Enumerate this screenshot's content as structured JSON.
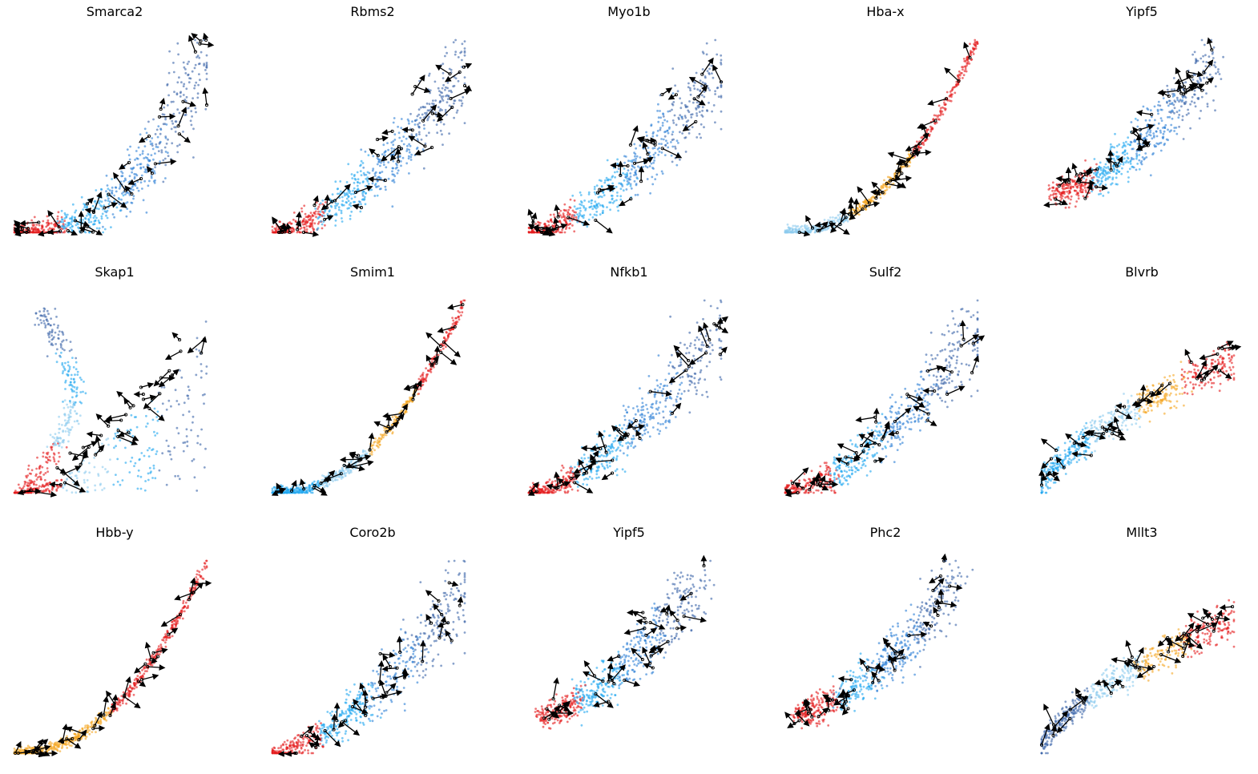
{
  "figure": {
    "background": "#ffffff",
    "rows": 3,
    "columns": 5,
    "axes_visible": false
  },
  "palette": {
    "red": "#e41a1c",
    "orange": "#f5a623",
    "light_blue": "#8ecbef",
    "sky_blue": "#1fa7f0",
    "mid_blue": "#2b7fd6",
    "dark_blue": "#3b64a8",
    "arrow": "#000000"
  },
  "chart_data": [
    {
      "type": "scatter",
      "title": "Smarca2",
      "shape": "convex",
      "colors": [
        "red",
        "sky_blue",
        "mid_blue",
        "dark_blue"
      ]
    },
    {
      "type": "scatter",
      "title": "Rbms2",
      "shape": "cloud",
      "colors": [
        "red",
        "sky_blue",
        "mid_blue",
        "dark_blue"
      ]
    },
    {
      "type": "scatter",
      "title": "Myo1b",
      "shape": "cloud",
      "colors": [
        "red",
        "sky_blue",
        "mid_blue",
        "dark_blue"
      ]
    },
    {
      "type": "scatter",
      "title": "Hba-x",
      "shape": "steep",
      "colors": [
        "light_blue",
        "orange",
        "red"
      ]
    },
    {
      "type": "scatter",
      "title": "Yipf5",
      "shape": "blob",
      "colors": [
        "red",
        "sky_blue",
        "mid_blue",
        "dark_blue"
      ]
    },
    {
      "type": "scatter",
      "title": "Skap1",
      "shape": "loop",
      "colors": [
        "red",
        "light_blue",
        "sky_blue",
        "dark_blue"
      ]
    },
    {
      "type": "scatter",
      "title": "Smim1",
      "shape": "steep",
      "colors": [
        "sky_blue",
        "light_blue",
        "orange",
        "red"
      ]
    },
    {
      "type": "scatter",
      "title": "Nfkb1",
      "shape": "cloud",
      "colors": [
        "red",
        "sky_blue",
        "mid_blue",
        "dark_blue"
      ]
    },
    {
      "type": "scatter",
      "title": "Sulf2",
      "shape": "cloud",
      "colors": [
        "red",
        "sky_blue",
        "mid_blue",
        "dark_blue"
      ]
    },
    {
      "type": "scatter",
      "title": "Blvrb",
      "shape": "concave",
      "colors": [
        "sky_blue",
        "light_blue",
        "orange",
        "red"
      ]
    },
    {
      "type": "scatter",
      "title": "Hbb-y",
      "shape": "steep",
      "colors": [
        "orange",
        "red"
      ]
    },
    {
      "type": "scatter",
      "title": "Coro2b",
      "shape": "cloud",
      "colors": [
        "red",
        "sky_blue",
        "mid_blue",
        "dark_blue"
      ]
    },
    {
      "type": "scatter",
      "title": "Yipf5",
      "shape": "blob",
      "colors": [
        "red",
        "sky_blue",
        "mid_blue",
        "dark_blue"
      ]
    },
    {
      "type": "scatter",
      "title": "Phc2",
      "shape": "blob",
      "colors": [
        "red",
        "sky_blue",
        "mid_blue",
        "dark_blue"
      ]
    },
    {
      "type": "scatter",
      "title": "Mllt3",
      "shape": "concave",
      "colors": [
        "dark_blue",
        "light_blue",
        "orange",
        "red"
      ]
    }
  ]
}
